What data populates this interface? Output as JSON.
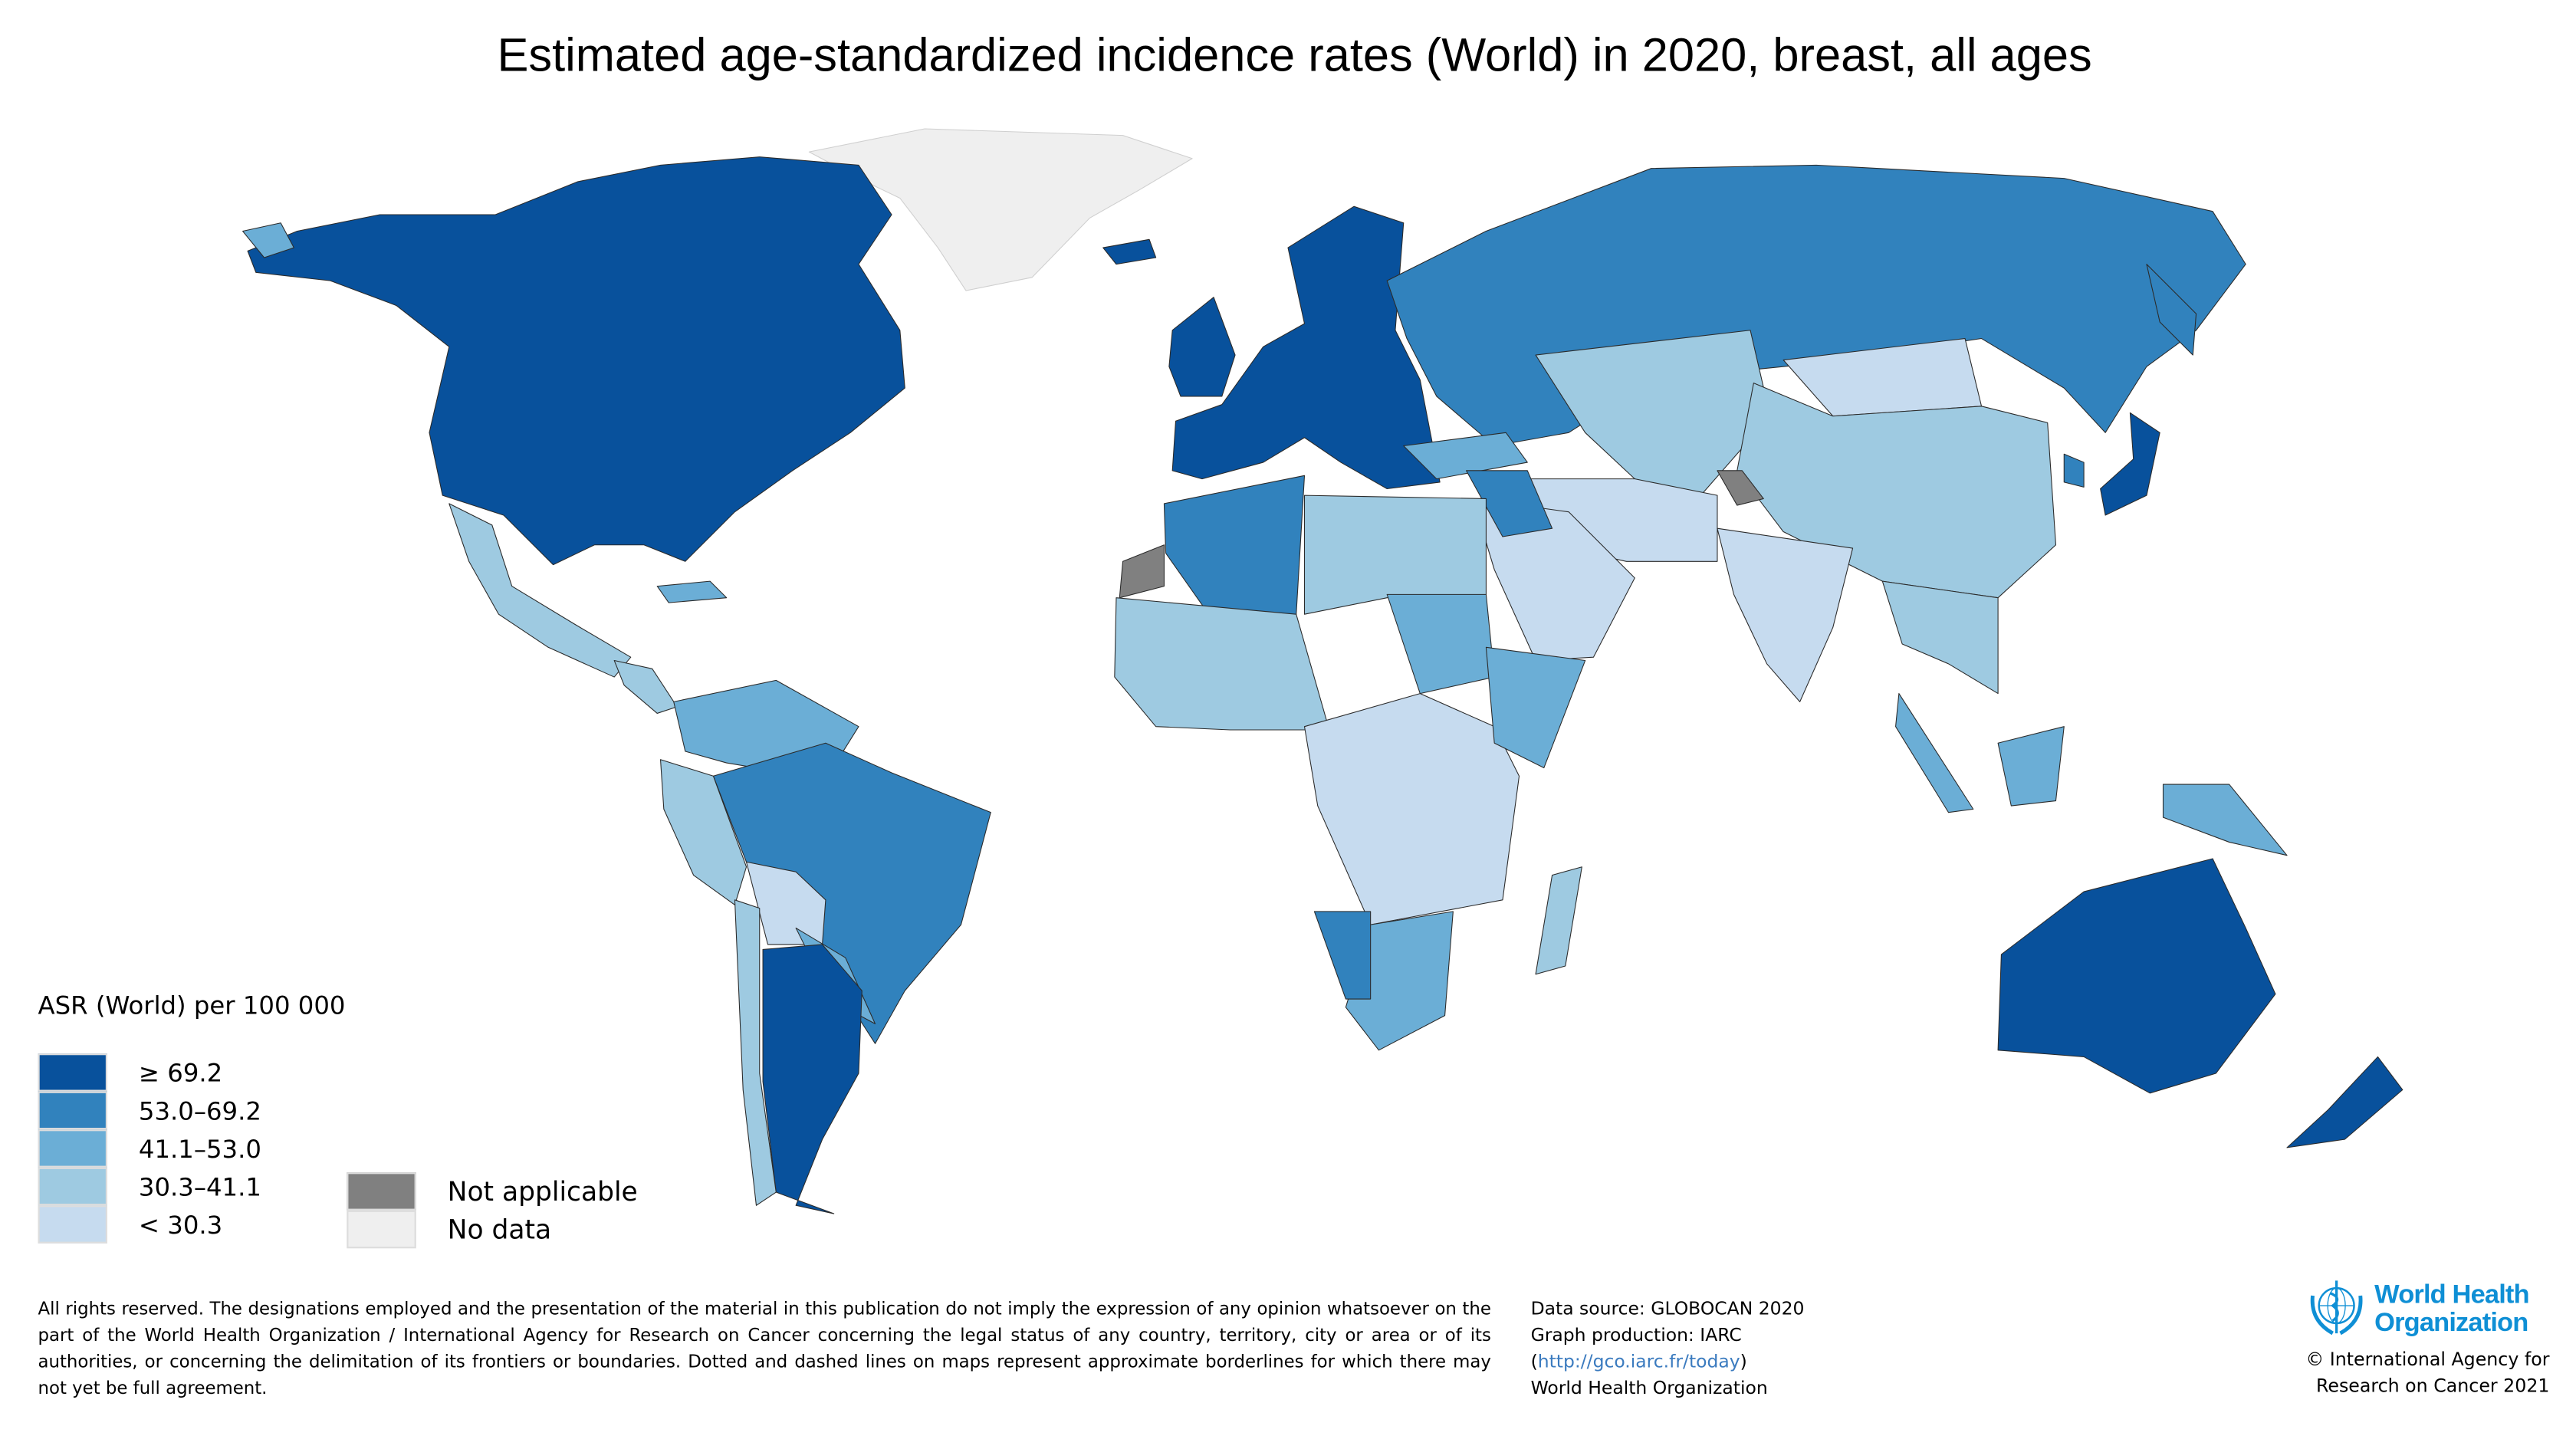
{
  "title": "Estimated age-standardized incidence rates (World) in 2020, breast, all ages",
  "legend": {
    "title": "ASR (World) per 100 000",
    "classes": [
      {
        "label": "≥ 69.2",
        "color": "#08519c"
      },
      {
        "label": "53.0–69.2",
        "color": "#3182bd"
      },
      {
        "label": "41.1–53.0",
        "color": "#6baed6"
      },
      {
        "label": "30.3–41.1",
        "color": "#9ecae1"
      },
      {
        "label": "< 30.3",
        "color": "#c6dbef"
      }
    ],
    "special": [
      {
        "label": "Not applicable",
        "color": "#808080"
      },
      {
        "label": "No data",
        "color": "#efefef"
      }
    ]
  },
  "footer": {
    "disclaimer": "All rights reserved. The designations employed and the presentation of the material in this publication do not imply the expression of any opinion whatsoever on the part of the World Health Organization / International Agency for Research on Cancer concerning the legal status of any country, territory, city or area or of its authorities, or concerning the delimitation of its frontiers or boundaries. Dotted and dashed lines on maps represent approximate borderlines for which there may not yet be full agreement.",
    "data_source": "Data source: GLOBOCAN 2020",
    "graph_production": "Graph production: IARC",
    "link_open": "(",
    "link": "http://gco.iarc.fr/today",
    "link_close": ")",
    "org": "World Health Organization",
    "logo_line1": "World Health",
    "logo_line2": "Organization",
    "copyright_line1": "© International Agency for",
    "copyright_line2": "Research on Cancer 2021"
  }
}
